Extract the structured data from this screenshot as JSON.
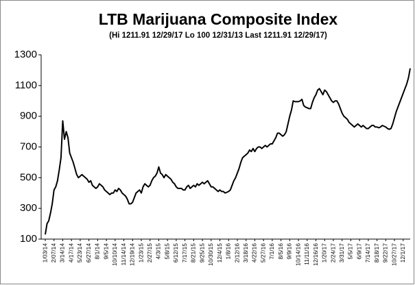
{
  "chart_data": {
    "type": "line",
    "title": "LTB Marijuana Composite Index",
    "subtitle": "(Hi 1211.91 12/29/17 Lo 100 12/31/13 Last 1211.91 12/29/17)",
    "categories": [
      "1/03/14",
      null,
      null,
      null,
      null,
      "2/07/14",
      null,
      null,
      null,
      null,
      "3/14/14",
      null,
      null,
      null,
      null,
      "4/17/14",
      null,
      null,
      null,
      null,
      "5/23/14",
      null,
      null,
      null,
      null,
      "6/27/14",
      null,
      null,
      null,
      null,
      "8/1/14",
      null,
      null,
      null,
      null,
      "9/5/14",
      null,
      null,
      null,
      null,
      "10/10/14",
      null,
      null,
      null,
      null,
      "11/14/14",
      null,
      null,
      null,
      null,
      "12/19/14",
      null,
      null,
      null,
      null,
      "1/23/15",
      null,
      null,
      null,
      null,
      "2/27/15",
      null,
      null,
      null,
      null,
      "4/3/15",
      null,
      null,
      null,
      null,
      "5/8/15",
      null,
      null,
      null,
      null,
      "6/12/15",
      null,
      null,
      null,
      null,
      "7/17/15",
      null,
      null,
      null,
      null,
      "8/21/15",
      null,
      null,
      null,
      null,
      "9/25/15",
      null,
      null,
      null,
      null,
      "10/30/15",
      null,
      null,
      null,
      null,
      "12/4/15",
      null,
      null,
      null,
      null,
      "1/8/16",
      null,
      null,
      null,
      null,
      "2/12/16",
      null,
      null,
      null,
      null,
      "3/18/16",
      null,
      null,
      null,
      null,
      "4/22/16",
      null,
      null,
      null,
      null,
      "5/27/16",
      null,
      null,
      null,
      null,
      "7/1/16",
      null,
      null,
      null,
      null,
      "8/5/16",
      null,
      null,
      null,
      null,
      "9/9/16",
      null,
      null,
      null,
      null,
      "10/14/16",
      null,
      null,
      null,
      null,
      "11/11/16",
      null,
      null,
      null,
      null,
      "12/16/16",
      null,
      null,
      null,
      null,
      "1/20/17",
      null,
      null,
      null,
      null,
      "2/24/17",
      null,
      null,
      null,
      null,
      "3/31/17",
      null,
      null,
      null,
      null,
      "5/5/17",
      null,
      null,
      null,
      null,
      "6/9/17",
      null,
      null,
      null,
      null,
      "7/14/17",
      null,
      null,
      null,
      null,
      "8/18/17",
      null,
      null,
      null,
      null,
      "9/22/17",
      null,
      null,
      null,
      null,
      "10/27/17",
      null,
      null,
      null,
      null,
      "12/1/17",
      null,
      null,
      null,
      null
    ],
    "values": [
      130,
      200,
      220,
      270,
      330,
      420,
      440,
      480,
      550,
      630,
      870,
      750,
      800,
      760,
      660,
      630,
      600,
      560,
      520,
      500,
      510,
      520,
      510,
      500,
      490,
      470,
      480,
      450,
      440,
      430,
      440,
      460,
      450,
      440,
      420,
      410,
      400,
      390,
      400,
      400,
      420,
      410,
      430,
      420,
      400,
      390,
      380,
      360,
      330,
      330,
      340,
      370,
      400,
      410,
      420,
      400,
      440,
      460,
      450,
      440,
      450,
      480,
      500,
      510,
      530,
      570,
      530,
      520,
      500,
      520,
      510,
      500,
      490,
      470,
      460,
      440,
      430,
      430,
      430,
      420,
      420,
      440,
      450,
      430,
      440,
      450,
      440,
      460,
      450,
      460,
      470,
      460,
      470,
      480,
      460,
      440,
      440,
      430,
      420,
      410,
      420,
      410,
      410,
      400,
      405,
      410,
      420,
      450,
      480,
      500,
      530,
      560,
      600,
      630,
      640,
      650,
      660,
      680,
      670,
      690,
      670,
      690,
      700,
      700,
      690,
      700,
      710,
      700,
      710,
      720,
      720,
      740,
      760,
      790,
      790,
      780,
      770,
      780,
      800,
      850,
      900,
      940,
      1000,
      995,
      995,
      995,
      1000,
      1010,
      970,
      960,
      955,
      950,
      950,
      990,
      1020,
      1040,
      1070,
      1080,
      1060,
      1040,
      1070,
      1060,
      1040,
      1020,
      1000,
      990,
      1000,
      1000,
      980,
      950,
      920,
      900,
      890,
      880,
      860,
      850,
      840,
      830,
      840,
      850,
      840,
      830,
      840,
      830,
      820,
      820,
      830,
      840,
      840,
      830,
      830,
      825,
      830,
      840,
      835,
      830,
      820,
      815,
      820,
      850,
      890,
      930,
      960,
      990,
      1020,
      1050,
      1080,
      1110,
      1150,
      1211.91
    ],
    "color": "#000000",
    "ylim": [
      100,
      1300
    ],
    "yticks": [
      100,
      300,
      500,
      700,
      900,
      1100,
      1300
    ]
  }
}
